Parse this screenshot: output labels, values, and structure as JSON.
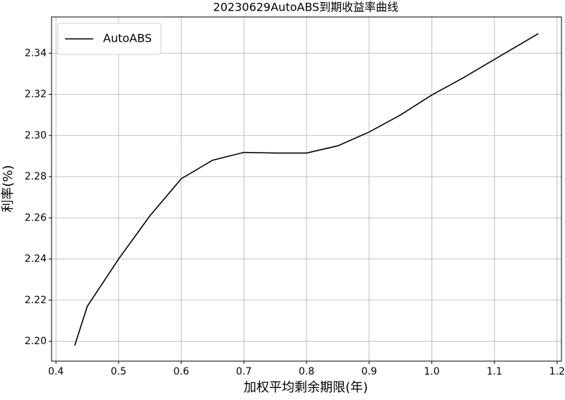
{
  "chart_data": {
    "type": "line",
    "title": "20230629AutoABS到期收益率曲线",
    "x_label": "加权平均剩余期限(年)",
    "y_label": "利率(%)",
    "x": [
      0.43,
      0.45,
      0.5,
      0.55,
      0.6,
      0.65,
      0.7,
      0.75,
      0.8,
      0.85,
      0.9,
      0.95,
      1.0,
      1.05,
      1.1,
      1.17
    ],
    "series": [
      {
        "name": "AutoABS",
        "color": "#000000",
        "values": [
          2.198,
          2.217,
          2.24,
          2.261,
          2.279,
          2.288,
          2.2918,
          2.2915,
          2.2915,
          2.295,
          2.3017,
          2.31,
          2.3197,
          2.328,
          2.337,
          2.3495
        ]
      }
    ],
    "xlim": [
      0.393,
      1.207
    ],
    "ylim": [
      2.1904,
      2.3576
    ],
    "xticks": [
      0.4,
      0.5,
      0.6,
      0.7,
      0.8,
      0.9,
      {
        "value": 1.0,
        "label": "1.0"
      },
      1.1,
      1.2
    ],
    "yticks": [
      {
        "value": 2.2,
        "label": "2.20"
      },
      2.22,
      2.24,
      2.26,
      2.28,
      {
        "value": 2.3,
        "label": "2.30"
      },
      2.32,
      2.34
    ],
    "grid": true,
    "legend": "upper left"
  }
}
